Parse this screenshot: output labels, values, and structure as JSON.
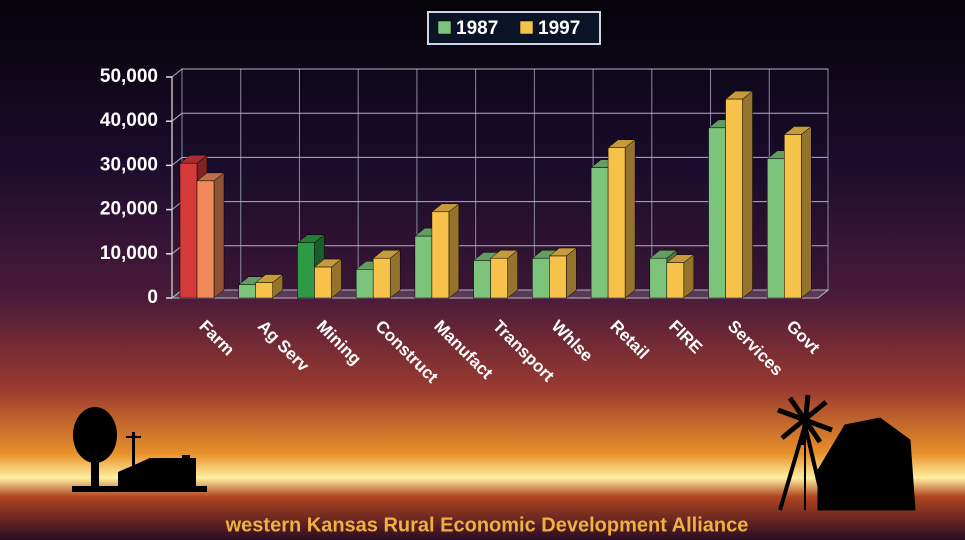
{
  "chart_data": {
    "type": "bar3d",
    "categories": [
      "Farm",
      "Ag Serv",
      "Mining",
      "Construct",
      "Manufact",
      "Transport",
      "Whlse",
      "Retail",
      "FIRE",
      "Services",
      "Govt"
    ],
    "series": [
      {
        "name": "1987",
        "color": "#7cc47c",
        "colors": [
          "#d63a3a",
          "#7cc47c",
          "#2e9a45",
          "#7cc47c",
          "#7cc47c",
          "#7cc47c",
          "#7cc47c",
          "#7cc47c",
          "#7cc47c",
          "#7cc47c",
          "#7cc47c"
        ],
        "values": [
          30500,
          3000,
          12500,
          6500,
          14000,
          8500,
          9000,
          29500,
          9000,
          38500,
          31500
        ]
      },
      {
        "name": "1997",
        "color": "#f7c24a",
        "colors": [
          "#f08a5a",
          "#f7c24a",
          "#f7c24a",
          "#f7c24a",
          "#f7c24a",
          "#f7c24a",
          "#f7c24a",
          "#f7c24a",
          "#f7c24a",
          "#f7c24a",
          "#f7c24a"
        ],
        "values": [
          26500,
          3500,
          7000,
          9000,
          19500,
          9000,
          9500,
          34000,
          8000,
          45000,
          37000
        ]
      }
    ],
    "ylim": [
      0,
      50000
    ],
    "yticks": [
      0,
      {
        "value": 10000,
        "label": "10,000"
      },
      {
        "value": 20000,
        "label": "20,000"
      },
      {
        "value": 30000,
        "label": "30,000"
      },
      {
        "value": 40000,
        "label": "40,000"
      },
      {
        "value": 50000,
        "label": "50,000"
      }
    ],
    "grid": true,
    "footer": "western Kansas Rural Economic Development Alliance"
  }
}
